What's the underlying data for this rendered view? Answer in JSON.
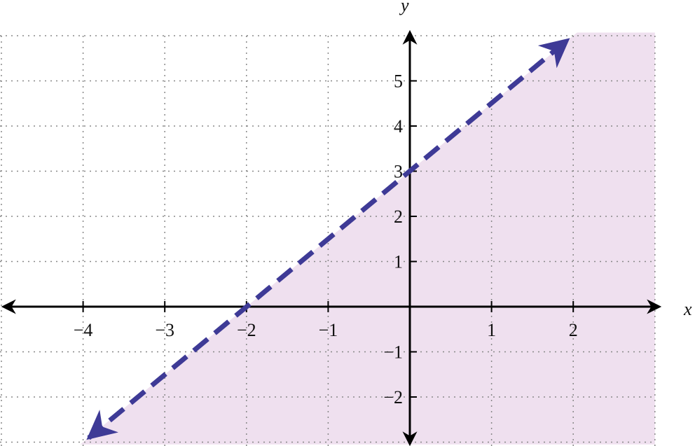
{
  "chart_data": {
    "type": "line",
    "title": "",
    "xlabel": "x",
    "ylabel": "y",
    "xlim": [
      -5,
      3
    ],
    "ylim": [
      -3,
      6
    ],
    "grid": true,
    "grid_style": "dotted",
    "x_ticks": [
      -4,
      -3,
      -2,
      -1,
      1,
      2
    ],
    "y_ticks": [
      -2,
      -1,
      1,
      2,
      3,
      4,
      5
    ],
    "x_tick_labels": [
      "−4",
      "−3",
      "−2",
      "−1",
      "1",
      "2"
    ],
    "y_tick_labels": [
      "−2",
      "−1",
      "1",
      "2",
      "3",
      "4",
      "5"
    ],
    "boundary_line": {
      "slope": 1.5,
      "intercept": 3,
      "points": [
        [
          -4,
          -3
        ],
        [
          2,
          6
        ]
      ],
      "style": "dashed",
      "arrows": "both",
      "color": "#3e3a96"
    },
    "shaded_region": {
      "side": "below-right of line",
      "color": "#efe0ef"
    },
    "axis_color": "#000000",
    "grid_color": "#888888"
  }
}
